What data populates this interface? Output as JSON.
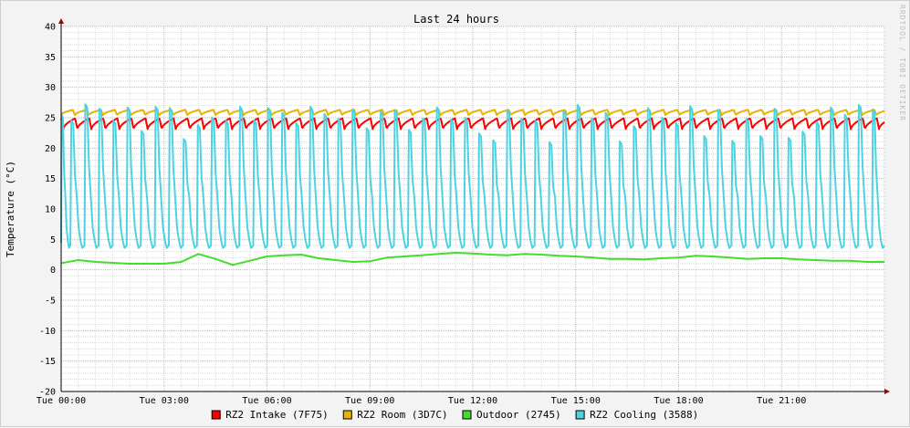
{
  "watermark": "RRDTOOL / TOBI OETIKER",
  "chart_data": {
    "type": "line",
    "title": "Last 24 hours",
    "xlabel": "",
    "ylabel": "Temperature (°C)",
    "ylim": [
      -20,
      40
    ],
    "yticks": [
      40,
      35,
      30,
      25,
      20,
      15,
      10,
      5,
      0,
      -5,
      -10,
      -15,
      -20
    ],
    "xlim_hours": [
      0,
      24
    ],
    "xticks": [
      {
        "hour": 0,
        "label": "Tue 00:00"
      },
      {
        "hour": 3,
        "label": "Tue 03:00"
      },
      {
        "hour": 6,
        "label": "Tue 06:00"
      },
      {
        "hour": 9,
        "label": "Tue 09:00"
      },
      {
        "hour": 12,
        "label": "Tue 12:00"
      },
      {
        "hour": 15,
        "label": "Tue 15:00"
      },
      {
        "hour": 18,
        "label": "Tue 18:00"
      },
      {
        "hour": 21,
        "label": "Tue 21:00"
      }
    ],
    "grid": true,
    "legend": "bottom",
    "series": [
      {
        "name": "RZ2 Intake (7F75)",
        "color": "#ff0000",
        "pattern": "sawtooth",
        "period_hours": 0.41,
        "min": 23.1,
        "max": 24.9
      },
      {
        "name": "RZ2 Room (3D7C)",
        "color": "#e8b400",
        "pattern": "sawtooth",
        "period_hours": 0.41,
        "min": 25.4,
        "max": 26.3
      },
      {
        "name": "Outdoor (2745)",
        "color": "#44dd2e",
        "pattern": "line",
        "x": [
          0,
          0.5,
          1,
          2,
          3,
          3.5,
          4,
          4.5,
          5,
          5.5,
          6,
          6.5,
          7,
          7.5,
          8,
          8.5,
          9,
          9.5,
          10,
          10.5,
          11,
          11.5,
          12,
          12.5,
          13,
          13.5,
          14,
          14.5,
          15,
          15.5,
          16,
          16.5,
          17,
          17.5,
          18,
          18.5,
          19,
          19.5,
          20,
          20.5,
          21,
          21.5,
          22,
          22.5,
          23,
          23.5,
          24
        ],
        "values": [
          1.1,
          1.6,
          1.3,
          1.0,
          1.0,
          1.3,
          2.6,
          1.8,
          0.8,
          1.5,
          2.2,
          2.4,
          2.5,
          1.9,
          1.6,
          1.3,
          1.4,
          2.0,
          2.2,
          2.4,
          2.6,
          2.8,
          2.7,
          2.5,
          2.4,
          2.6,
          2.5,
          2.3,
          2.2,
          2.0,
          1.8,
          1.8,
          1.7,
          1.9,
          2.0,
          2.3,
          2.2,
          2.0,
          1.8,
          1.9,
          1.9,
          1.7,
          1.6,
          1.5,
          1.5,
          1.3,
          1.3
        ]
      },
      {
        "name": "RZ2 Cooling (3588)",
        "color": "#4dd3e0",
        "pattern": "cycles",
        "cycle_starts_hours": [
          0.0,
          0.27,
          0.68,
          1.09,
          1.5,
          1.91,
          2.32,
          2.73,
          3.14,
          3.55,
          3.96,
          4.37,
          4.78,
          5.19,
          5.6,
          6.01,
          6.42,
          6.83,
          7.24,
          7.65,
          8.06,
          8.47,
          8.88,
          9.29,
          9.7,
          10.11,
          10.52,
          10.93,
          11.34,
          11.75,
          12.16,
          12.57,
          12.98,
          13.39,
          13.8,
          14.21,
          14.62,
          15.03,
          15.44,
          15.85,
          16.26,
          16.67,
          17.08,
          17.49,
          17.9,
          18.31,
          18.72,
          19.13,
          19.54,
          19.95,
          20.36,
          20.77,
          21.18,
          21.59,
          22.0,
          22.41,
          22.82,
          23.23,
          23.64
        ],
        "peaks": [
          25.5,
          24.5,
          27.2,
          26.5,
          24.5,
          26.7,
          22.8,
          26.8,
          26.6,
          21.5,
          23.8,
          25.0,
          24.5,
          26.8,
          24.6,
          26.6,
          25.8,
          24.1,
          26.8,
          25.6,
          24.8,
          26.4,
          23.3,
          26.0,
          26.2,
          23.0,
          24.9,
          26.7,
          24.7,
          25.0,
          22.4,
          21.3,
          26.3,
          24.8,
          24.5,
          21.0,
          26.1,
          27.1,
          24.9,
          25.8,
          21.1,
          23.6,
          26.6,
          25.0,
          24.1,
          26.9,
          22.0,
          26.3,
          21.2,
          24.8,
          22.0,
          26.5,
          21.7,
          22.7,
          24.3,
          26.7,
          25.5,
          27.1,
          26.4
        ],
        "base": 4.0,
        "min": 3.6
      }
    ]
  }
}
